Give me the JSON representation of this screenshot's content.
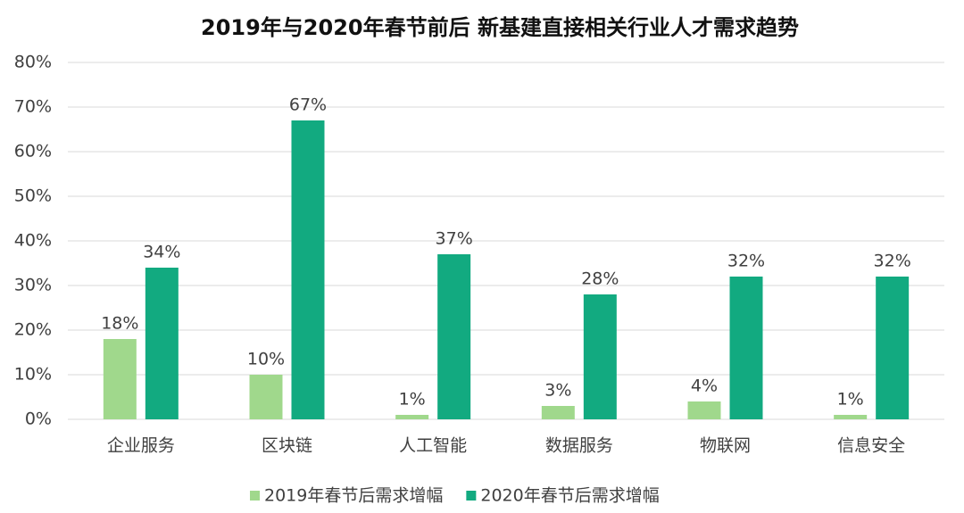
{
  "chart_data": {
    "type": "bar",
    "title": "2019年与2020年春节前后  新基建直接相关行业人才需求趋势",
    "categories": [
      "企业服务",
      "区块链",
      "人工智能",
      "数据服务",
      "物联网",
      "信息安全"
    ],
    "series": [
      {
        "name": "2019年春节后需求增幅",
        "color": "#a0d88c",
        "values": [
          18,
          10,
          1,
          3,
          4,
          1
        ],
        "value_labels": [
          "18%",
          "10%",
          "1%",
          "3%",
          "4%",
          "1%"
        ]
      },
      {
        "name": "2020年春节后需求增幅",
        "color": "#12aa80",
        "values": [
          34,
          67,
          37,
          28,
          32,
          32
        ],
        "value_labels": [
          "34%",
          "67%",
          "37%",
          "28%",
          "32%",
          "32%"
        ]
      }
    ],
    "ylim": [
      0,
      80
    ],
    "yticks": [
      {
        "value": 0,
        "label": "0%"
      },
      {
        "value": 10,
        "label": "10%"
      },
      {
        "value": 20,
        "label": "20%"
      },
      {
        "value": 30,
        "label": "30%"
      },
      {
        "value": 40,
        "label": "40%"
      },
      {
        "value": 50,
        "label": "50%"
      },
      {
        "value": 60,
        "label": "60%"
      },
      {
        "value": 70,
        "label": "70%"
      },
      {
        "value": 80,
        "label": "80%"
      }
    ],
    "grid": true,
    "legend": "bottom"
  }
}
